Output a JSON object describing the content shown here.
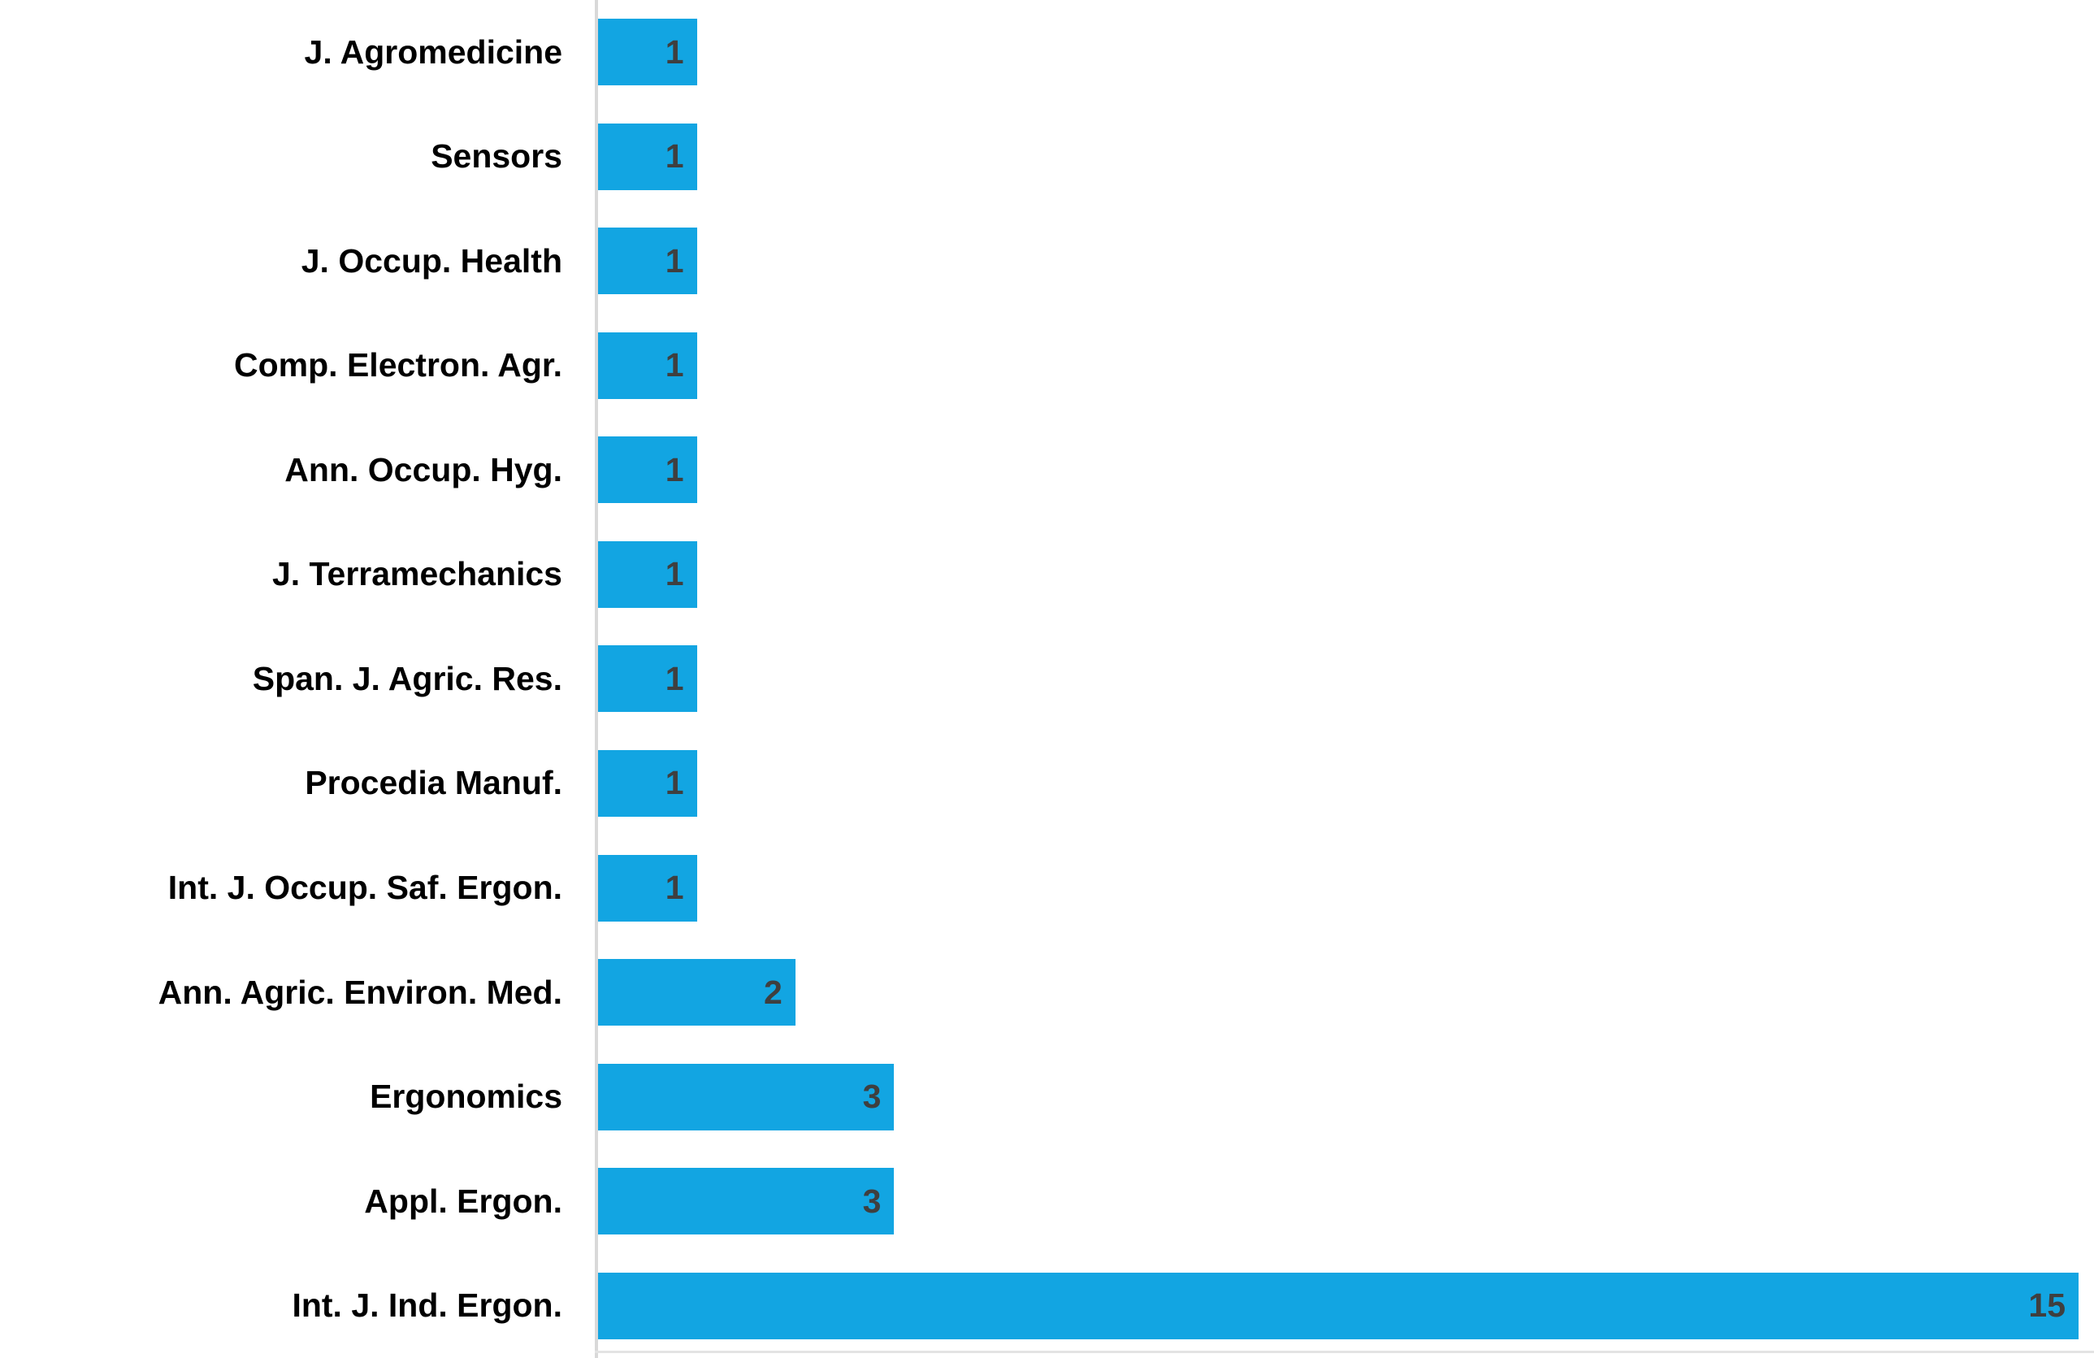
{
  "chart_data": {
    "type": "bar",
    "orientation": "horizontal",
    "title": "",
    "xlabel": "",
    "ylabel": "",
    "categories": [
      "J. Agromedicine",
      "Sensors",
      "J. Occup. Health",
      "Comp. Electron. Agr.",
      "Ann. Occup. Hyg.",
      "J. Terramechanics",
      "Span. J. Agric. Res.",
      "Procedia Manuf.",
      "Int. J. Occup. Saf. Ergon.",
      "Ann. Agric. Environ. Med.",
      "Ergonomics",
      "Appl. Ergon.",
      "Int. J. Ind. Ergon."
    ],
    "values": [
      1,
      1,
      1,
      1,
      1,
      1,
      1,
      1,
      1,
      2,
      3,
      3,
      15
    ],
    "xlim": [
      0,
      15
    ],
    "grid": false,
    "legend": false,
    "value_labels": "inside-end",
    "colors": {
      "bar": "#12a5e2",
      "value_label": "#3f3f3f",
      "category_label": "#000000",
      "axis_line": "#d9d9d9",
      "baseline": "#e3e3e3",
      "background": "#ffffff"
    }
  }
}
